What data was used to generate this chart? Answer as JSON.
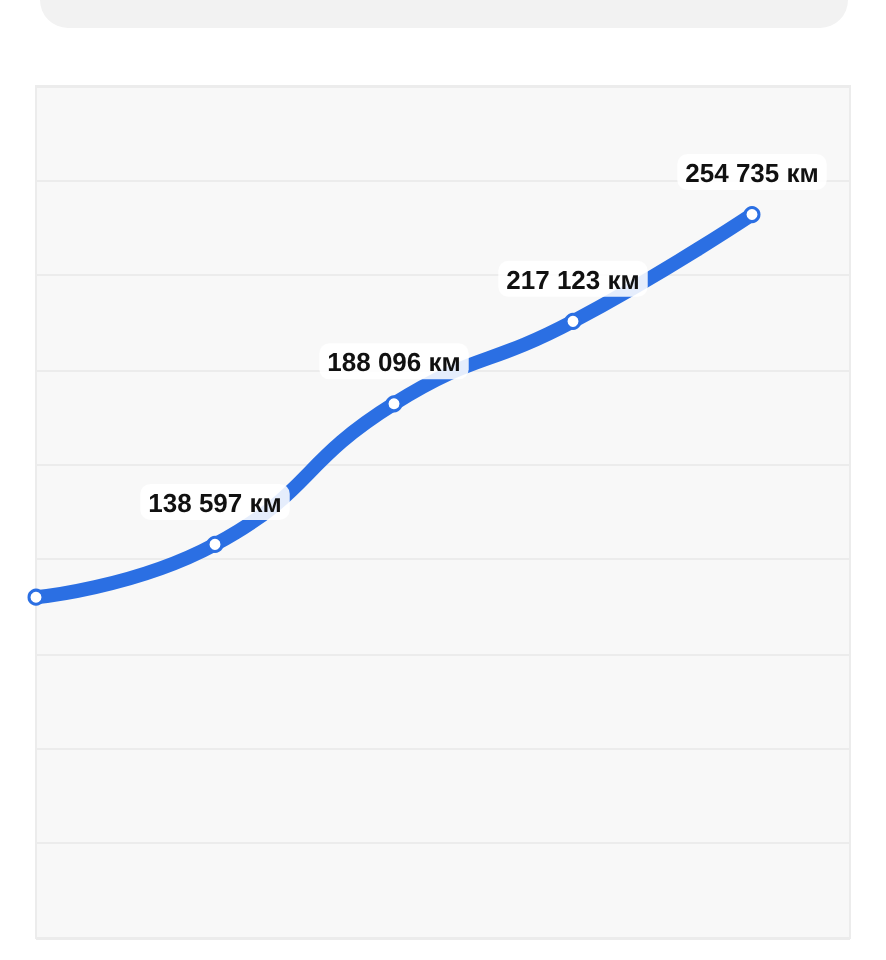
{
  "chart_data": {
    "type": "line",
    "categories": [
      null,
      null,
      null,
      null,
      null
    ],
    "values": [
      120000,
      138597,
      188096,
      217123,
      254735
    ],
    "value_labels": [
      null,
      "138 597 км",
      "188 096 км",
      "217 123 км",
      "254 735 км"
    ],
    "color": "#2b6fe3",
    "ylim": [
      0,
      300000
    ],
    "yticks": [
      {
        "value": 0,
        "label": null
      },
      {
        "value": 33333,
        "label": null
      },
      {
        "value": 66667,
        "label": null
      },
      {
        "value": 100000,
        "label": null
      },
      {
        "value": 133333,
        "label": null
      },
      {
        "value": 166667,
        "label": null
      },
      {
        "value": 200000,
        "label": null
      },
      {
        "value": 233333,
        "label": null
      },
      {
        "value": 266667,
        "label": null
      },
      {
        "value": 300000,
        "label": null
      }
    ],
    "grid": "y",
    "marker": "circle",
    "line_style": "solid"
  }
}
